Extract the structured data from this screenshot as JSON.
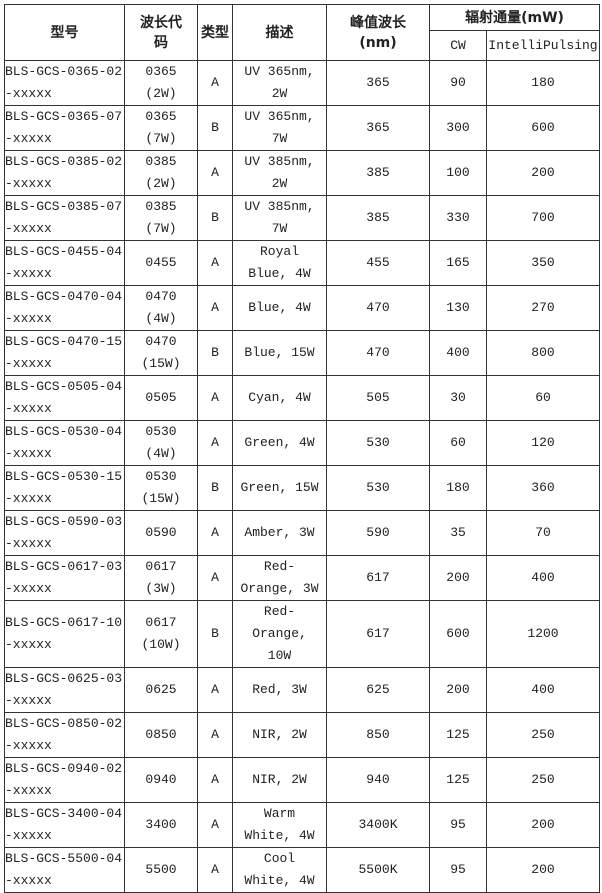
{
  "headers": {
    "model": "型号",
    "code": "波长代码",
    "type": "类型",
    "desc": "描述",
    "peak": "峰值波长(nm)",
    "flux": "辐射通量(mW)",
    "cw": "CW",
    "ip": "IntelliPulsing"
  },
  "rows": [
    [
      "BLS-GCS-0365-02-xxxxx",
      "0365 (2W)",
      "A",
      "UV 365nm, 2W",
      "365",
      "90",
      "180"
    ],
    [
      "BLS-GCS-0365-07-xxxxx",
      "0365 (7W)",
      "B",
      "UV 365nm, 7W",
      "365",
      "300",
      "600"
    ],
    [
      "BLS-GCS-0385-02-xxxxx",
      "0385 (2W)",
      "A",
      "UV 385nm, 2W",
      "385",
      "100",
      "200"
    ],
    [
      "BLS-GCS-0385-07-xxxxx",
      "0385 (7W)",
      "B",
      "UV 385nm, 7W",
      "385",
      "330",
      "700"
    ],
    [
      "BLS-GCS-0455-04-xxxxx",
      "0455",
      "A",
      "Royal Blue, 4W",
      "455",
      "165",
      "350"
    ],
    [
      "BLS-GCS-0470-04-xxxxx",
      "0470 (4W)",
      "A",
      "Blue, 4W",
      "470",
      "130",
      "270"
    ],
    [
      "BLS-GCS-0470-15-xxxxx",
      "0470 (15W)",
      "B",
      "Blue, 15W",
      "470",
      "400",
      "800"
    ],
    [
      "BLS-GCS-0505-04-xxxxx",
      "0505",
      "A",
      "Cyan, 4W",
      "505",
      "30",
      "60"
    ],
    [
      "BLS-GCS-0530-04-xxxxx",
      "0530 (4W)",
      "A",
      "Green, 4W",
      "530",
      "60",
      "120"
    ],
    [
      "BLS-GCS-0530-15-xxxxx",
      "0530 (15W)",
      "B",
      "Green, 15W",
      "530",
      "180",
      "360"
    ],
    [
      "BLS-GCS-0590-03-xxxxx",
      "0590",
      "A",
      "Amber, 3W",
      "590",
      "35",
      "70"
    ],
    [
      "BLS-GCS-0617-03-xxxxx",
      "0617 (3W)",
      "A",
      "Red-Orange, 3W",
      "617",
      "200",
      "400"
    ],
    [
      "BLS-GCS-0617-10-xxxxx",
      "0617 (10W)",
      "B",
      "Red-Orange, 10W",
      "617",
      "600",
      "1200"
    ],
    [
      "BLS-GCS-0625-03-xxxxx",
      "0625",
      "A",
      "Red, 3W",
      "625",
      "200",
      "400"
    ],
    [
      "BLS-GCS-0850-02-xxxxx",
      "0850",
      "A",
      "NIR, 2W",
      "850",
      "125",
      "250"
    ],
    [
      "BLS-GCS-0940-02-xxxxx",
      "0940",
      "A",
      "NIR, 2W",
      "940",
      "125",
      "250"
    ],
    [
      "BLS-GCS-3400-04-xxxxx",
      "3400",
      "A",
      "Warm White, 4W",
      "3400K",
      "95",
      "200"
    ],
    [
      "BLS-GCS-5500-04-xxxxx",
      "5500",
      "A",
      "Cool White, 4W",
      "5500K",
      "95",
      "200"
    ]
  ]
}
